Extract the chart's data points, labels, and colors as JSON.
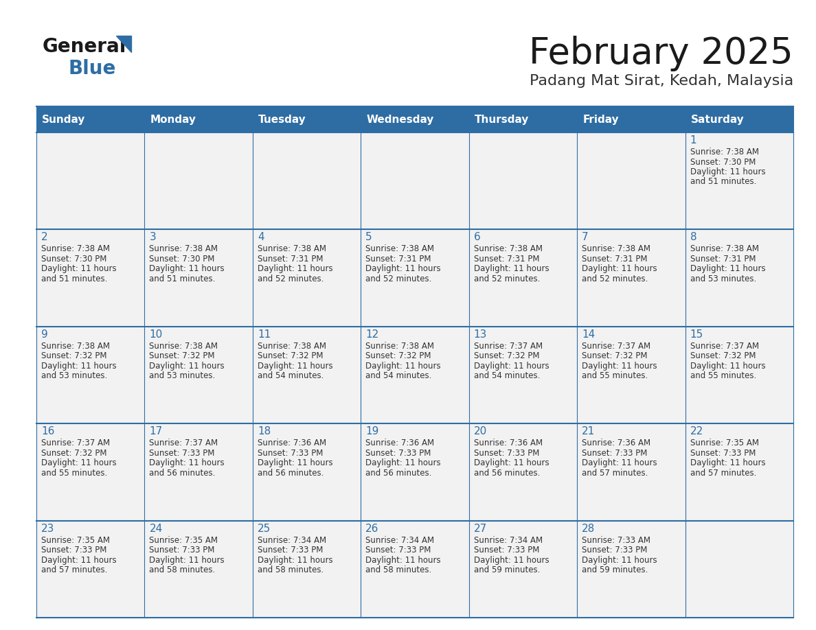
{
  "title": "February 2025",
  "subtitle": "Padang Mat Sirat, Kedah, Malaysia",
  "header_bg": "#2e6da4",
  "header_text_color": "#ffffff",
  "cell_bg": "#f2f2f2",
  "border_color": "#2e6da4",
  "title_color": "#1a1a1a",
  "subtitle_color": "#333333",
  "day_number_color": "#2e6da4",
  "cell_text_color": "#333333",
  "days_of_week": [
    "Sunday",
    "Monday",
    "Tuesday",
    "Wednesday",
    "Thursday",
    "Friday",
    "Saturday"
  ],
  "weeks": [
    [
      {
        "day": null,
        "sunrise": null,
        "sunset": null,
        "daylight": null
      },
      {
        "day": null,
        "sunrise": null,
        "sunset": null,
        "daylight": null
      },
      {
        "day": null,
        "sunrise": null,
        "sunset": null,
        "daylight": null
      },
      {
        "day": null,
        "sunrise": null,
        "sunset": null,
        "daylight": null
      },
      {
        "day": null,
        "sunrise": null,
        "sunset": null,
        "daylight": null
      },
      {
        "day": null,
        "sunrise": null,
        "sunset": null,
        "daylight": null
      },
      {
        "day": 1,
        "sunrise": "7:38 AM",
        "sunset": "7:30 PM",
        "daylight": "11 hours and 51 minutes."
      }
    ],
    [
      {
        "day": 2,
        "sunrise": "7:38 AM",
        "sunset": "7:30 PM",
        "daylight": "11 hours and 51 minutes."
      },
      {
        "day": 3,
        "sunrise": "7:38 AM",
        "sunset": "7:30 PM",
        "daylight": "11 hours and 51 minutes."
      },
      {
        "day": 4,
        "sunrise": "7:38 AM",
        "sunset": "7:31 PM",
        "daylight": "11 hours and 52 minutes."
      },
      {
        "day": 5,
        "sunrise": "7:38 AM",
        "sunset": "7:31 PM",
        "daylight": "11 hours and 52 minutes."
      },
      {
        "day": 6,
        "sunrise": "7:38 AM",
        "sunset": "7:31 PM",
        "daylight": "11 hours and 52 minutes."
      },
      {
        "day": 7,
        "sunrise": "7:38 AM",
        "sunset": "7:31 PM",
        "daylight": "11 hours and 52 minutes."
      },
      {
        "day": 8,
        "sunrise": "7:38 AM",
        "sunset": "7:31 PM",
        "daylight": "11 hours and 53 minutes."
      }
    ],
    [
      {
        "day": 9,
        "sunrise": "7:38 AM",
        "sunset": "7:32 PM",
        "daylight": "11 hours and 53 minutes."
      },
      {
        "day": 10,
        "sunrise": "7:38 AM",
        "sunset": "7:32 PM",
        "daylight": "11 hours and 53 minutes."
      },
      {
        "day": 11,
        "sunrise": "7:38 AM",
        "sunset": "7:32 PM",
        "daylight": "11 hours and 54 minutes."
      },
      {
        "day": 12,
        "sunrise": "7:38 AM",
        "sunset": "7:32 PM",
        "daylight": "11 hours and 54 minutes."
      },
      {
        "day": 13,
        "sunrise": "7:37 AM",
        "sunset": "7:32 PM",
        "daylight": "11 hours and 54 minutes."
      },
      {
        "day": 14,
        "sunrise": "7:37 AM",
        "sunset": "7:32 PM",
        "daylight": "11 hours and 55 minutes."
      },
      {
        "day": 15,
        "sunrise": "7:37 AM",
        "sunset": "7:32 PM",
        "daylight": "11 hours and 55 minutes."
      }
    ],
    [
      {
        "day": 16,
        "sunrise": "7:37 AM",
        "sunset": "7:32 PM",
        "daylight": "11 hours and 55 minutes."
      },
      {
        "day": 17,
        "sunrise": "7:37 AM",
        "sunset": "7:33 PM",
        "daylight": "11 hours and 56 minutes."
      },
      {
        "day": 18,
        "sunrise": "7:36 AM",
        "sunset": "7:33 PM",
        "daylight": "11 hours and 56 minutes."
      },
      {
        "day": 19,
        "sunrise": "7:36 AM",
        "sunset": "7:33 PM",
        "daylight": "11 hours and 56 minutes."
      },
      {
        "day": 20,
        "sunrise": "7:36 AM",
        "sunset": "7:33 PM",
        "daylight": "11 hours and 56 minutes."
      },
      {
        "day": 21,
        "sunrise": "7:36 AM",
        "sunset": "7:33 PM",
        "daylight": "11 hours and 57 minutes."
      },
      {
        "day": 22,
        "sunrise": "7:35 AM",
        "sunset": "7:33 PM",
        "daylight": "11 hours and 57 minutes."
      }
    ],
    [
      {
        "day": 23,
        "sunrise": "7:35 AM",
        "sunset": "7:33 PM",
        "daylight": "11 hours and 57 minutes."
      },
      {
        "day": 24,
        "sunrise": "7:35 AM",
        "sunset": "7:33 PM",
        "daylight": "11 hours and 58 minutes."
      },
      {
        "day": 25,
        "sunrise": "7:34 AM",
        "sunset": "7:33 PM",
        "daylight": "11 hours and 58 minutes."
      },
      {
        "day": 26,
        "sunrise": "7:34 AM",
        "sunset": "7:33 PM",
        "daylight": "11 hours and 58 minutes."
      },
      {
        "day": 27,
        "sunrise": "7:34 AM",
        "sunset": "7:33 PM",
        "daylight": "11 hours and 59 minutes."
      },
      {
        "day": 28,
        "sunrise": "7:33 AM",
        "sunset": "7:33 PM",
        "daylight": "11 hours and 59 minutes."
      },
      {
        "day": null,
        "sunrise": null,
        "sunset": null,
        "daylight": null
      }
    ]
  ],
  "logo_general_color": "#1a1a1a",
  "logo_blue_color": "#2e6da4",
  "logo_triangle_color": "#2e6da4"
}
